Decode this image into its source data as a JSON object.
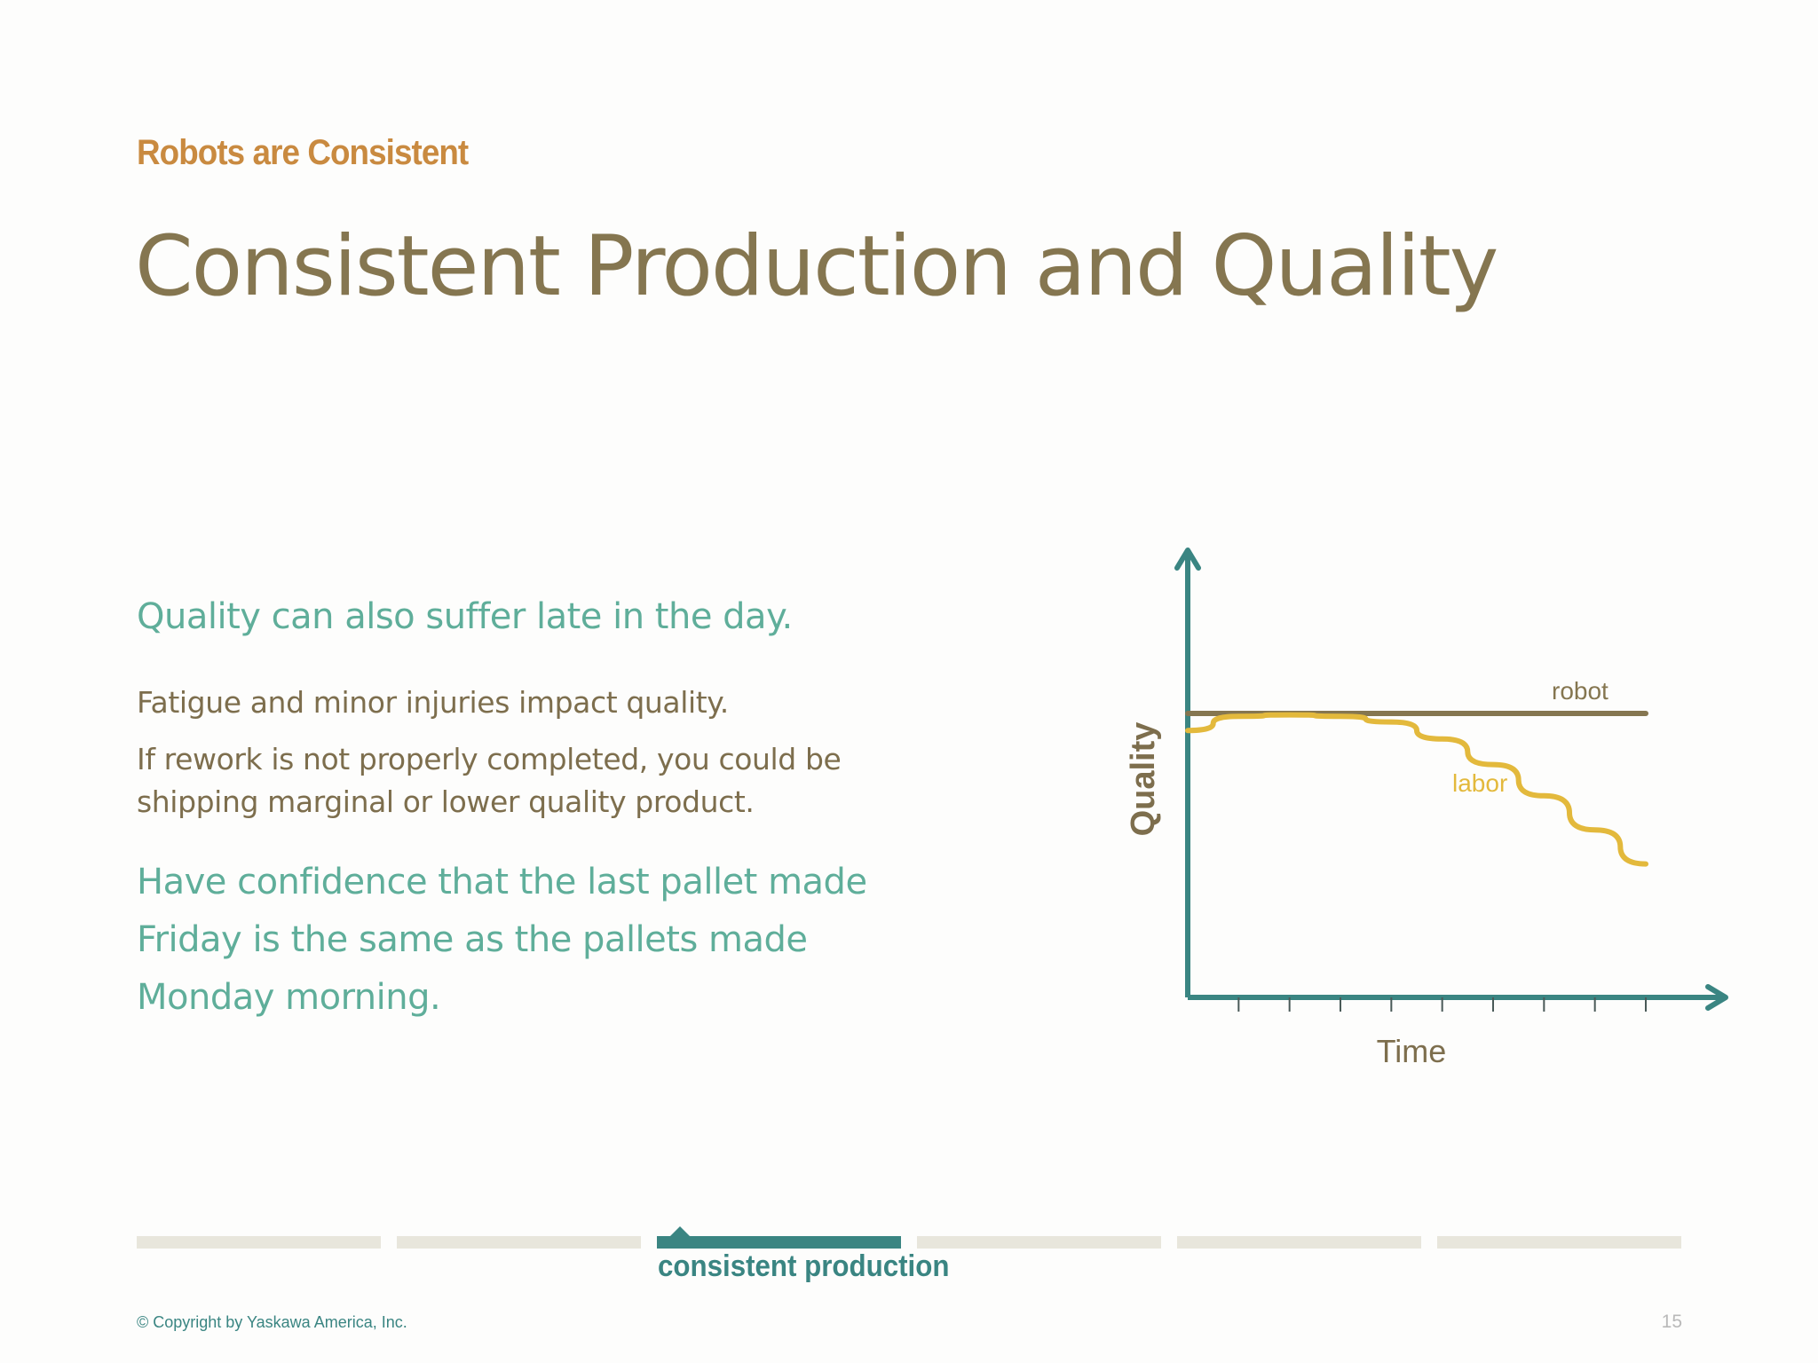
{
  "slide": {
    "kicker": "Robots are Consistent",
    "title": "Consistent Production and Quality"
  },
  "content": {
    "lead": "Quality can also suffer late in the day.",
    "para1": "Fatigue and minor injuries impact quality.",
    "para2_line1": "If rework is not properly completed, you could be",
    "para2_line2": "shipping marginal or lower quality product.",
    "closing_line1": "Have confidence that the last pallet made",
    "closing_line2": "Friday is the same as the pallets made",
    "closing_line3": "Monday morning."
  },
  "chart_data": {
    "type": "line",
    "title": "",
    "xlabel": "Time",
    "ylabel": "Quality",
    "x": [
      0,
      1,
      2,
      3,
      4,
      5,
      6,
      7,
      8,
      9
    ],
    "xlim": [
      0,
      9
    ],
    "ylim": [
      0,
      100
    ],
    "ticks": 9,
    "grid": false,
    "series": [
      {
        "name": "robot",
        "color": "#857650",
        "values": [
          100,
          100,
          100,
          100,
          100,
          100,
          100,
          100,
          100,
          100
        ]
      },
      {
        "name": "labor",
        "color": "#e3b93c",
        "values": [
          94,
          99,
          99.5,
          99,
          97,
          91,
          82,
          71,
          59,
          47
        ]
      }
    ],
    "axis_color": "#3a8582"
  },
  "footer": {
    "sections": [
      {
        "label": ""
      },
      {
        "label": ""
      },
      {
        "label": "consistent production",
        "active": true
      },
      {
        "label": ""
      },
      {
        "label": ""
      },
      {
        "label": ""
      }
    ],
    "active_label": "consistent production",
    "copyright": "© Copyright by Yaskawa America, Inc.",
    "page_number": "15"
  },
  "colors": {
    "kicker": "#c98a40",
    "title": "#857650",
    "accent": "#5fae9a",
    "teal": "#3a8582",
    "inactive": "#e8e6dc"
  }
}
